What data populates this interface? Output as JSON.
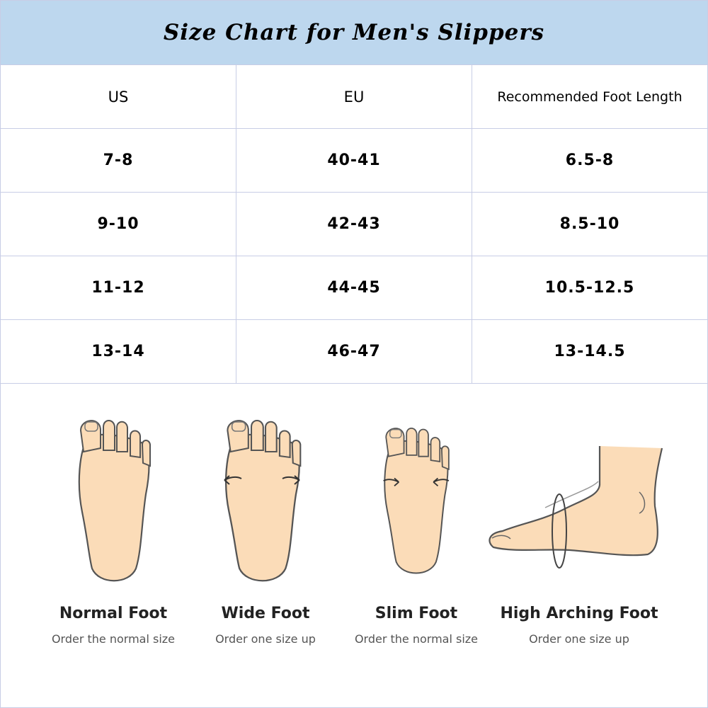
{
  "title": "Size Chart for Men's Slippers",
  "colors": {
    "header_bg": "#bdd7ee",
    "grid": "#c8cde6",
    "skin": "#fbdcb8"
  },
  "table": {
    "headers": [
      "US",
      "EU",
      "Recommended Foot Length"
    ],
    "rows": [
      [
        "7-8",
        "40-41",
        "6.5-8"
      ],
      [
        "9-10",
        "42-43",
        "8.5-10"
      ],
      [
        "11-12",
        "44-45",
        "10.5-12.5"
      ],
      [
        "13-14",
        "46-47",
        "13-14.5"
      ]
    ]
  },
  "foot_types": [
    {
      "label": "Normal Foot",
      "note": "Order the normal size"
    },
    {
      "label": "Wide Foot",
      "note": "Order one size up"
    },
    {
      "label": "Slim Foot",
      "note": "Order the normal size"
    },
    {
      "label": "High Arching Foot",
      "note": "Order one size up"
    }
  ]
}
